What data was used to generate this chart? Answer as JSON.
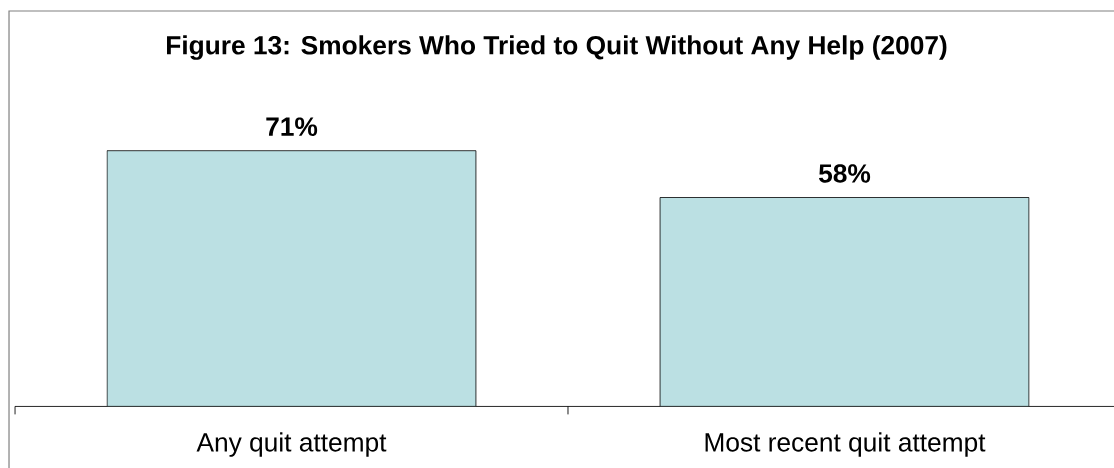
{
  "chart_data": {
    "type": "bar",
    "title": "Figure 13: Smokers Who Tried to Quit Without Any Help (2007)",
    "categories": [
      "Any quit attempt",
      "Most recent quit attempt"
    ],
    "values": [
      71,
      58
    ],
    "value_labels": [
      "71%",
      "58%"
    ],
    "color": "#bbe0e3",
    "tick_labels": "x"
  }
}
